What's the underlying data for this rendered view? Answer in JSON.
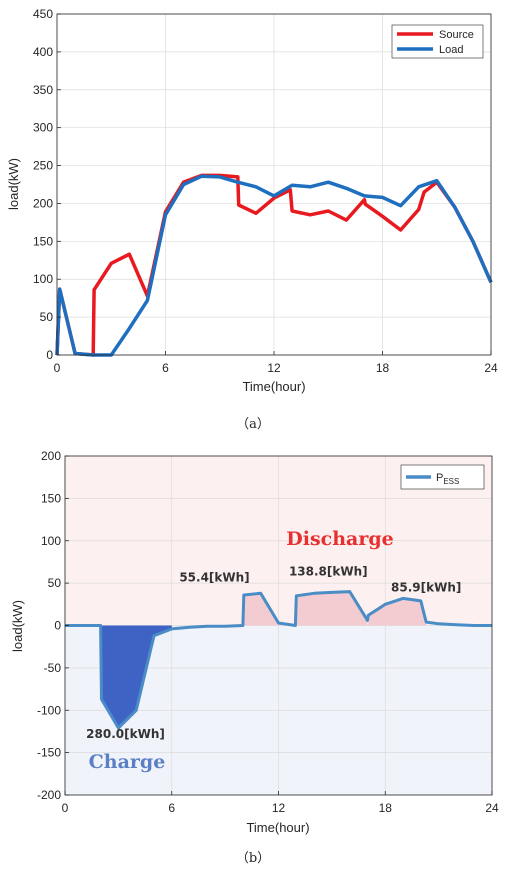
{
  "chart_data": [
    {
      "type": "line",
      "caption": "（a）",
      "xlabel": "Time(hour)",
      "ylabel": "load(kW)",
      "xlim": [
        0,
        24
      ],
      "ylim": [
        0,
        450
      ],
      "xticks": [
        0,
        6,
        12,
        18,
        24
      ],
      "yticks": [
        0,
        50,
        100,
        150,
        200,
        250,
        300,
        350,
        400,
        450
      ],
      "grid": true,
      "legend_position": "top-right",
      "series": [
        {
          "name": "Source",
          "color": "#e8191f",
          "x": [
            0,
            0.15,
            1,
            2,
            2.05,
            3,
            4,
            5,
            6,
            7,
            8,
            9,
            10,
            10.05,
            11,
            12,
            12.9,
            13,
            14,
            15,
            16,
            17,
            17.05,
            18,
            19,
            20,
            20.3,
            21,
            22,
            23,
            24
          ],
          "y": [
            0,
            87,
            2,
            0,
            86,
            121,
            133,
            78,
            189,
            228,
            237,
            237,
            235,
            198,
            187,
            207,
            218,
            190,
            185,
            190,
            178,
            205,
            199,
            183,
            165,
            192,
            215,
            228,
            195,
            150,
            96
          ]
        },
        {
          "name": "Load",
          "color": "#1f6fc0",
          "x": [
            0,
            0.15,
            1,
            2,
            3,
            4,
            5,
            6,
            7,
            8,
            9,
            10,
            11,
            12,
            13,
            14,
            15,
            16,
            17,
            18,
            19,
            20,
            21,
            22,
            23,
            24
          ],
          "y": [
            0,
            87,
            2,
            0,
            0,
            35,
            72,
            185,
            225,
            236,
            235,
            228,
            222,
            210,
            224,
            222,
            228,
            220,
            210,
            208,
            197,
            222,
            230,
            195,
            150,
            96
          ]
        }
      ]
    },
    {
      "type": "area",
      "caption": "（b）",
      "xlabel": "Time(hour)",
      "ylabel": "load(kW)",
      "xlim": [
        0,
        24
      ],
      "ylim": [
        -200,
        200
      ],
      "xticks": [
        0,
        6,
        12,
        18,
        24
      ],
      "yticks": [
        -200,
        -150,
        -100,
        -50,
        0,
        50,
        100,
        150,
        200
      ],
      "grid": true,
      "legend_position": "top-right",
      "regions": {
        "discharge_label": "Discharge",
        "charge_label": "Charge",
        "discharge_color": "#e83030",
        "charge_color": "#5b7fc4"
      },
      "series": [
        {
          "name": "P",
          "name_sub": "ESS",
          "color": "#4a8cc6",
          "x": [
            0,
            2,
            2.05,
            3,
            4,
            5,
            6,
            7,
            8,
            9,
            10,
            10.05,
            11,
            12,
            12.95,
            13,
            14,
            15,
            16,
            17,
            17.05,
            18,
            19,
            20,
            20.3,
            21,
            22,
            23,
            24
          ],
          "y": [
            0,
            0,
            -87,
            -121,
            -100,
            -12,
            -4,
            -2,
            -1,
            -1,
            0,
            36,
            38,
            3,
            0,
            35,
            38,
            39,
            40,
            6,
            12,
            25,
            32,
            29,
            4,
            2,
            1,
            0,
            0
          ]
        }
      ],
      "energy_annotations": [
        {
          "text": "280.0[kWh]",
          "x": 3.4,
          "y": -133
        },
        {
          "text": "55.4[kWh]",
          "x": 8.4,
          "y": 52
        },
        {
          "text": "138.8[kWh]",
          "x": 14.8,
          "y": 59
        },
        {
          "text": "85.9[kWh]",
          "x": 20.3,
          "y": 40
        }
      ],
      "shaded_charge": [
        {
          "x": [
            2,
            2.05,
            3,
            4,
            5,
            6
          ],
          "y": [
            0,
            -87,
            -121,
            -100,
            -12,
            -4
          ],
          "color": "#3f63c4"
        }
      ],
      "shaded_discharge": [
        {
          "x": [
            10,
            10.05,
            11,
            12,
            12.95
          ],
          "y": [
            0,
            36,
            38,
            3,
            0
          ],
          "color": "#f2ccd0"
        },
        {
          "x": [
            13,
            14,
            15,
            16,
            17
          ],
          "y": [
            35,
            38,
            39,
            40,
            6
          ],
          "color": "#f2ccd0"
        },
        {
          "x": [
            17.05,
            18,
            19,
            20,
            20.3
          ],
          "y": [
            12,
            25,
            32,
            29,
            4
          ],
          "color": "#f2ccd0"
        }
      ]
    }
  ]
}
